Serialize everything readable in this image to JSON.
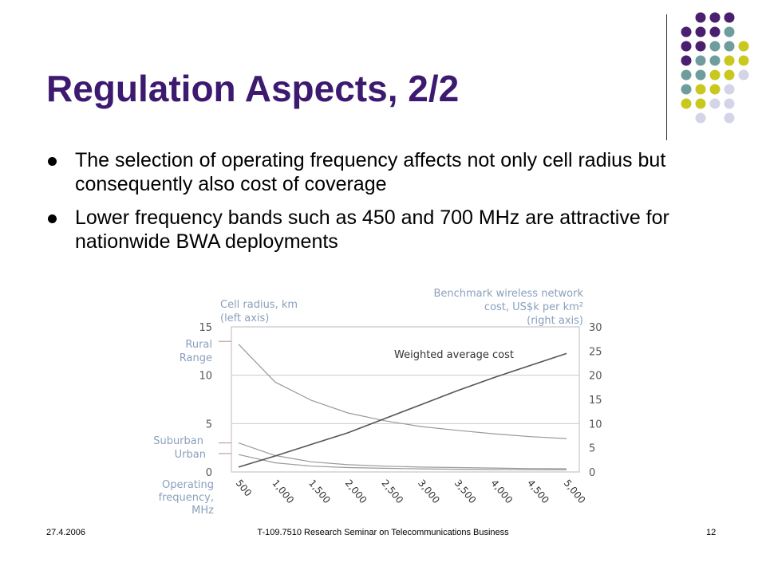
{
  "slide": {
    "title": "Regulation Aspects, 2/2",
    "bullets": [
      "The selection of operating frequency affects not only cell radius but consequently also cost of coverage",
      "Lower frequency bands such as 450 and 700 MHz are attractive for nationwide BWA deployments"
    ],
    "footer_date": "27.4.2006",
    "footer_course": "T-109.7510 Research Seminar on Telecommunications Business",
    "page_number": "12",
    "accent_color": "#3d1a70"
  },
  "decoration": {
    "dot_colors": {
      "purple": "#4b1f6f",
      "teal": "#6f9c9c",
      "olive": "#c8c81e",
      "lavender": "#d4d4e8"
    }
  },
  "chart_data": {
    "type": "line",
    "left_axis": {
      "label_line1": "Cell radius, km",
      "label_line2": "(left axis)",
      "ylim": [
        0,
        15
      ],
      "ticks": [
        "15",
        "10",
        "5",
        "0"
      ]
    },
    "right_axis": {
      "label_line1": "Benchmark wireless network",
      "label_line2": "cost, US$k per km²",
      "label_line3": "(right axis)",
      "ylim": [
        0,
        30
      ],
      "ticks": [
        "30",
        "25",
        "20",
        "15",
        "10",
        "5",
        "0"
      ]
    },
    "x_axis": {
      "label_lines": [
        "Operating",
        "frequency,",
        "MHz"
      ],
      "categories": [
        "500",
        "1,000",
        "1,500",
        "2,000",
        "2,500",
        "3,000",
        "3,500",
        "4,000",
        "4,500",
        "5,000"
      ]
    },
    "range_labels": {
      "rural": [
        "Rural",
        "Range"
      ],
      "suburban": "Suburban",
      "urban": "Urban",
      "rural_value": 13.5,
      "suburban_value": 3.0,
      "urban_value": 1.9
    },
    "annotation": "Weighted average cost",
    "series": [
      {
        "name": "Rural",
        "axis": "left",
        "values": [
          13.2,
          9.3,
          7.4,
          6.1,
          5.3,
          4.7,
          4.3,
          3.95,
          3.65,
          3.45
        ]
      },
      {
        "name": "Suburban",
        "axis": "left",
        "values": [
          3.0,
          1.7,
          1.05,
          0.75,
          0.6,
          0.5,
          0.45,
          0.4,
          0.35,
          0.33
        ]
      },
      {
        "name": "Urban",
        "axis": "left",
        "values": [
          1.8,
          0.95,
          0.6,
          0.45,
          0.38,
          0.32,
          0.28,
          0.25,
          0.23,
          0.22
        ]
      },
      {
        "name": "Weighted average cost",
        "axis": "right",
        "values": [
          1.0,
          3.3,
          5.7,
          8.1,
          11.0,
          13.9,
          16.8,
          19.5,
          22.0,
          24.5
        ]
      }
    ],
    "colors": {
      "cell_radius": "#999999",
      "cost": "#555555",
      "axis_text": "#8aa0bc",
      "ticks": "#555555"
    }
  }
}
